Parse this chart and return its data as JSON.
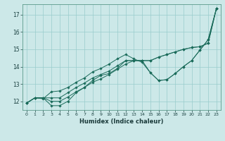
{
  "title": "",
  "xlabel": "Humidex (Indice chaleur)",
  "bg_color": "#cce8e8",
  "line_color": "#1a6b5a",
  "grid_color": "#99cccc",
  "xlim": [
    -0.5,
    23.5
  ],
  "ylim": [
    11.5,
    17.6
  ],
  "xticks": [
    0,
    1,
    2,
    3,
    4,
    5,
    6,
    7,
    8,
    9,
    10,
    11,
    12,
    13,
    14,
    15,
    16,
    17,
    18,
    19,
    20,
    21,
    22,
    23
  ],
  "yticks": [
    12,
    13,
    14,
    15,
    16,
    17
  ],
  "series": [
    [
      11.9,
      12.2,
      12.2,
      11.75,
      11.75,
      12.0,
      12.5,
      12.8,
      13.2,
      13.5,
      13.6,
      13.9,
      14.35,
      14.35,
      14.35,
      13.65,
      13.2,
      13.25,
      13.6,
      14.0,
      14.35,
      14.95,
      15.55,
      17.35
    ],
    [
      11.9,
      12.2,
      12.15,
      12.55,
      12.6,
      12.8,
      13.1,
      13.35,
      13.7,
      13.9,
      14.15,
      14.45,
      14.7,
      14.45,
      14.25,
      13.65,
      13.2,
      13.25,
      13.6,
      14.0,
      14.35,
      14.95,
      15.55,
      17.35
    ],
    [
      11.9,
      12.2,
      12.2,
      12.2,
      12.2,
      12.5,
      12.8,
      13.05,
      13.35,
      13.55,
      13.75,
      14.05,
      14.35,
      14.35,
      14.35,
      14.35,
      14.55,
      14.7,
      14.85,
      15.0,
      15.1,
      15.15,
      15.35,
      17.35
    ],
    [
      11.9,
      12.2,
      12.2,
      12.0,
      12.0,
      12.25,
      12.55,
      12.8,
      13.1,
      13.3,
      13.55,
      13.85,
      14.15,
      14.35,
      14.35,
      14.35,
      14.55,
      14.7,
      14.85,
      15.0,
      15.1,
      15.15,
      15.35,
      17.35
    ]
  ]
}
